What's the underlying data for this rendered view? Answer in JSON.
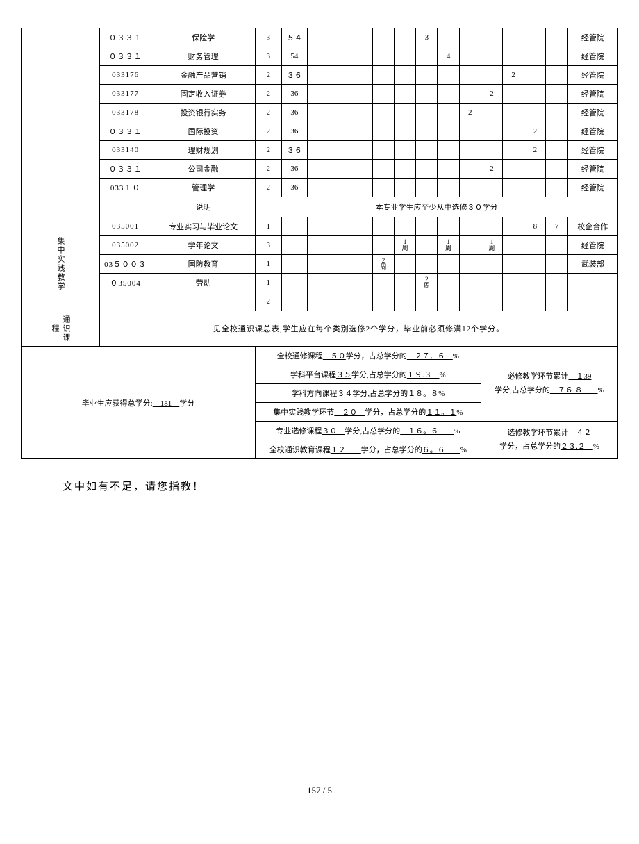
{
  "courses": [
    {
      "code": "０３３１",
      "name": "保险学",
      "credit": "3",
      "hours": "５４",
      "sem": {
        "s9": "3"
      },
      "dept": "经管院"
    },
    {
      "code": "０３３１",
      "name": "财务管理",
      "credit": "3",
      "hours": "54",
      "sem": {
        "s10": "4"
      },
      "dept": "经管院"
    },
    {
      "code": "033176",
      "name": "金融产品营销",
      "credit": "2",
      "hours": "３６",
      "sem": {
        "s13": "2"
      },
      "dept": "经管院"
    },
    {
      "code": "033177",
      "name": "固定收入证券",
      "credit": "2",
      "hours": "36",
      "sem": {
        "s12": "2"
      },
      "dept": "经管院"
    },
    {
      "code": "033178",
      "name": "投资银行实务",
      "credit": "2",
      "hours": "36",
      "sem": {
        "s11": "2"
      },
      "dept": "经管院"
    },
    {
      "code": "０３３１",
      "name": "国际投资",
      "credit": "2",
      "hours": "36",
      "sem": {
        "s14": "2"
      },
      "dept": "经管院"
    },
    {
      "code": "033140",
      "name": "理财规划",
      "credit": "2",
      "hours": "３６",
      "sem": {
        "s14": "2"
      },
      "dept": "经管院"
    },
    {
      "code": "０３３１",
      "name": "公司金融",
      "credit": "2",
      "hours": "36",
      "sem": {
        "s12": "2"
      },
      "dept": "经管院"
    },
    {
      "code": "033１０",
      "name": "管理学",
      "credit": "2",
      "hours": "36",
      "sem": {},
      "dept": "经管院"
    }
  ],
  "desc_label": "说明",
  "desc_text": "本专业学生应至少从中选修３０学分",
  "practice_label": "集中实践教学",
  "practice": [
    {
      "code": "035001",
      "name": "专业实习与毕业论文",
      "credit": "1",
      "sem": {
        "s14": "8",
        "s15": "7"
      },
      "dept": "校企合作"
    },
    {
      "code": "035002",
      "name": "学年论文",
      "credit": "3",
      "sem": {
        "s8": "1周",
        "s10": "1周",
        "s12": "1周"
      },
      "dept": "经管院"
    },
    {
      "code": "03５００３",
      "name": "国防教育",
      "credit": "1",
      "sem": {
        "s7": "2周"
      },
      "dept": "武装部"
    },
    {
      "code": "０35004",
      "name": "劳动",
      "credit": "1",
      "sem": {
        "s9": "2周"
      },
      "dept": ""
    }
  ],
  "practice_blank_credit": "2",
  "general_label": "通识课程",
  "general_text": "见全校通识课总表,学生应在每个类别选修2个学分，毕业前必须修满12个学分。",
  "grad_total_prefix": "毕业生应获得总学分:",
  "grad_total_value": "　181　",
  "grad_total_suffix": "学分",
  "summary_rows": [
    {
      "prefix": "全校通修课程",
      "u1": "　５０",
      "mid": "学分，占总学分的",
      "u2": "　２７．６　",
      "suffix": "%"
    },
    {
      "prefix": "学科平台课程",
      "u1": "３５",
      "mid": "学分,占总学分的",
      "u2": "１９.３　",
      "suffix": "%"
    },
    {
      "prefix": "学科方向课程",
      "u1": "３４",
      "mid": "学分,占总学分的",
      "u2": "１８。８",
      "suffix": "%"
    },
    {
      "prefix": "集中实践教学环节",
      "u1": "　２０　",
      "mid": "学分，占总学分的",
      "u2": "１１。１",
      "suffix": "%"
    },
    {
      "prefix": "专业选修课程",
      "u1": "３０　",
      "mid": "学分,占总学分的",
      "u2": "　１６。６　　",
      "suffix": "%"
    },
    {
      "prefix": "全校通识教育课程",
      "u1": "１２　　",
      "mid": "学分，占总学分的",
      "u2": "６。６　　",
      "suffix": "%"
    }
  ],
  "req_block": {
    "l1a": "必修教学环节累计",
    "l1b": "　１39",
    "l2a": "学分,占总学分的",
    "l2b": "　７６.８　　",
    "l2c": "%"
  },
  "elec_block": {
    "l1a": "选修教学环节累计",
    "l1b": "　４２　",
    "l2a": "学分，占总学分的",
    "l2b": "２３.２　",
    "l2c": "%"
  },
  "footer_note": "文中如有不足，请您指教！",
  "page_num": "157 / 5"
}
